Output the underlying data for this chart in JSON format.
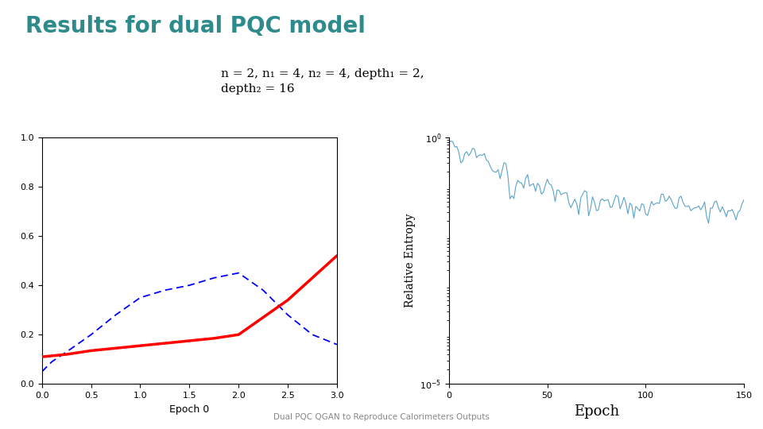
{
  "title": "Results for dual PQC model",
  "title_color": "#2E8B8B",
  "subtitle_line1": "n = 2, n₁ = 4, n₂ = 4, depth₁ = 2,",
  "subtitle_line2": "depth₂ = 16",
  "subtitle_box_color": "#C5DCE8",
  "footer": "Dual PQC QGAN to Reproduce Calorimeters Outputs",
  "background_color": "#FFFFFF",
  "left_plot": {
    "xlabel": "Epoch 0",
    "ylim": [
      0.0,
      1.0
    ],
    "xlim": [
      0.0,
      3.0
    ],
    "red_line_x": [
      0.0,
      0.25,
      0.5,
      0.75,
      1.0,
      1.25,
      1.5,
      1.75,
      2.0,
      2.5,
      3.0
    ],
    "red_line_y": [
      0.11,
      0.12,
      0.135,
      0.145,
      0.155,
      0.165,
      0.175,
      0.185,
      0.2,
      0.34,
      0.52
    ],
    "blue_line_x": [
      0.0,
      0.1,
      0.25,
      0.5,
      0.75,
      1.0,
      1.25,
      1.5,
      1.75,
      2.0,
      2.25,
      2.5,
      2.75,
      3.0
    ],
    "blue_line_y": [
      0.05,
      0.09,
      0.13,
      0.2,
      0.28,
      0.35,
      0.38,
      0.4,
      0.43,
      0.45,
      0.38,
      0.28,
      0.2,
      0.16
    ]
  },
  "right_plot": {
    "xlabel": "Epoch",
    "ylabel": "Relative Entropy",
    "xlim": [
      0,
      150
    ],
    "color": "#5BA4C8",
    "yticks": [
      1e-05,
      1.0
    ],
    "xticks": [
      0,
      50,
      100,
      150
    ]
  }
}
